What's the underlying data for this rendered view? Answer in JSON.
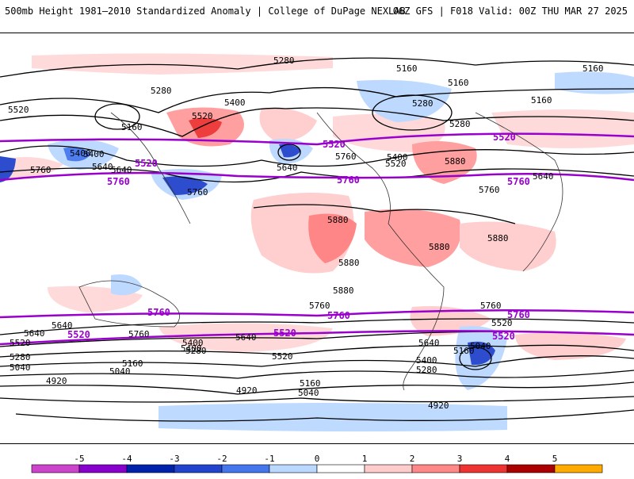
{
  "header": {
    "left": "500mb Height 1981–2010 Standardized Anomaly | College of DuPage NEXLAB",
    "right": "06Z GFS | F018 Valid: 00Z THU MAR 27 2025"
  },
  "map": {
    "black_contour_labels": [
      "5280",
      "5280",
      "5160",
      "5160",
      "5160",
      "5520",
      "5400",
      "5280",
      "5160",
      "5400",
      "5640",
      "5520",
      "5400",
      "5760",
      "5640",
      "5520",
      "5640",
      "5760",
      "5760",
      "5880",
      "5880",
      "5880",
      "5880",
      "5880",
      "5760",
      "5640",
      "5880",
      "5760",
      "5760",
      "5640",
      "5520",
      "5280",
      "5640",
      "5760",
      "5400",
      "5520",
      "5400",
      "5280",
      "5640",
      "5520",
      "5400",
      "5280",
      "5160",
      "5040",
      "5160",
      "5040",
      "4920",
      "4920",
      "5040",
      "5160",
      "4920",
      "5640",
      "5040",
      "5160",
      "5400",
      "5280"
    ],
    "purple_contour_labels": [
      "5520",
      "5760",
      "5520",
      "5760",
      "5520",
      "5760",
      "5760",
      "5760",
      "5760",
      "5520",
      "5520",
      "5520"
    ]
  },
  "colorbar": {
    "ticks": [
      "-5",
      "-4",
      "-3",
      "-2",
      "-1",
      "0",
      "1",
      "2",
      "3",
      "4",
      "5"
    ],
    "colors": [
      "#cc44cc",
      "#8800cc",
      "#0022aa",
      "#2244cc",
      "#4477ee",
      "#bbd8ff",
      "#ffffff",
      "#ffcccc",
      "#ff8888",
      "#ee3333",
      "#aa0000",
      "#ffaa00"
    ]
  }
}
